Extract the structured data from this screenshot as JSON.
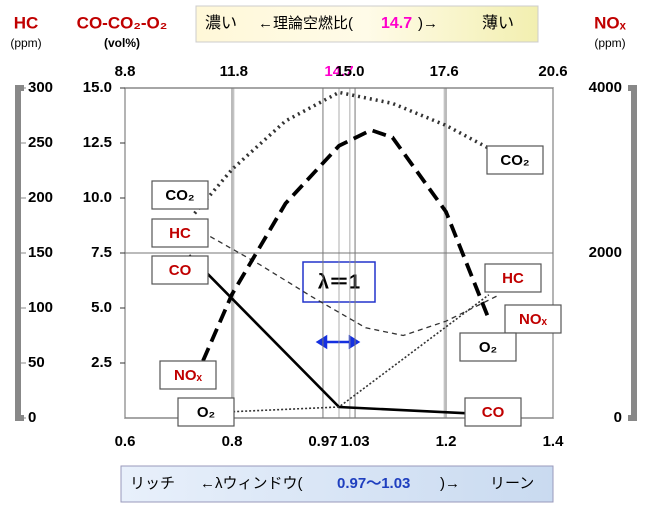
{
  "chart_data": {
    "type": "line",
    "header": {
      "hc": "HC",
      "hc_unit": "(ppm)",
      "vol": "CO-CO₂-O₂",
      "vol_unit": "(vol%)",
      "nox": "NOₓ",
      "nox_unit": "(ppm)"
    },
    "top_banner": {
      "left": "濃い",
      "prefix": "←理論空燃比(",
      "value": "14.7",
      "suffix": ")→",
      "right": "薄い"
    },
    "bottom_banner": {
      "left": "リッチ",
      "prefix": "←λウィンドウ(",
      "value": "0.97～1.03",
      "suffix": ")→",
      "right": "リーン"
    },
    "annotation": "λ＝1",
    "xlim": [
      0.6,
      1.4
    ],
    "xticks": [
      0.6,
      0.8,
      0.97,
      1.03,
      1.2,
      1.4
    ],
    "x2lim": [
      8.8,
      20.6
    ],
    "x2ticks": [
      8.8,
      11.8,
      14.7,
      {
        "value": 15,
        "label": "15.0"
      },
      17.6,
      20.6
    ],
    "ylim": [
      0,
      15
    ],
    "yticks": [
      {
        "value": 2.5,
        "label": "2.5"
      },
      {
        "value": 5,
        "label": "5.0"
      },
      {
        "value": 7.5,
        "label": "7.5"
      },
      {
        "value": 10,
        "label": "10.0"
      },
      {
        "value": 12.5,
        "label": "12.5"
      },
      {
        "value": 15,
        "label": "15.0"
      }
    ],
    "y3lim": [
      0,
      300
    ],
    "y3ticks": [
      0,
      50,
      100,
      150,
      200,
      250,
      300
    ],
    "y2lim": [
      0,
      4000
    ],
    "y2ticks": [
      0,
      2000,
      4000
    ],
    "grid": true,
    "series": [
      {
        "name": "CO₂",
        "color": "#333333",
        "label_color": "#000000",
        "dash": "dotted",
        "axis": "y",
        "x": [
          0.73,
          0.8,
          0.9,
          1.0,
          1.1,
          1.2,
          1.3
        ],
        "values": [
          9.3,
          11.3,
          13.5,
          14.8,
          14.3,
          13.3,
          12.0
        ]
      },
      {
        "name": "HC",
        "color": "#333333",
        "label_color": "#c00000",
        "dash": "dashed",
        "axis": "y3",
        "x": [
          0.73,
          0.85,
          0.95,
          1.05,
          1.12,
          1.2,
          1.3
        ],
        "values": [
          173,
          140,
          110,
          82,
          75,
          88,
          112
        ]
      },
      {
        "name": "CO",
        "color": "#000000",
        "label_color": "#c00000",
        "dash": "solid",
        "axis": "y",
        "x": [
          0.72,
          1.0,
          1.25
        ],
        "values": [
          7.4,
          0.5,
          0.2
        ]
      },
      {
        "name": "NOₓ",
        "color": "#000000",
        "label_color": "#c00000",
        "dash": "longdash",
        "axis": "y2",
        "x": [
          0.73,
          0.8,
          0.9,
          1.0,
          1.06,
          1.1,
          1.2,
          1.28
        ],
        "values": [
          460,
          1500,
          2600,
          3300,
          3490,
          3400,
          2500,
          1200
        ]
      },
      {
        "name": "O₂",
        "color": "#333333",
        "label_color": "#000000",
        "dash": "thindot",
        "axis": "y",
        "x": [
          0.72,
          1.0,
          1.28
        ],
        "values": [
          0.2,
          0.5,
          5.6
        ]
      }
    ]
  }
}
